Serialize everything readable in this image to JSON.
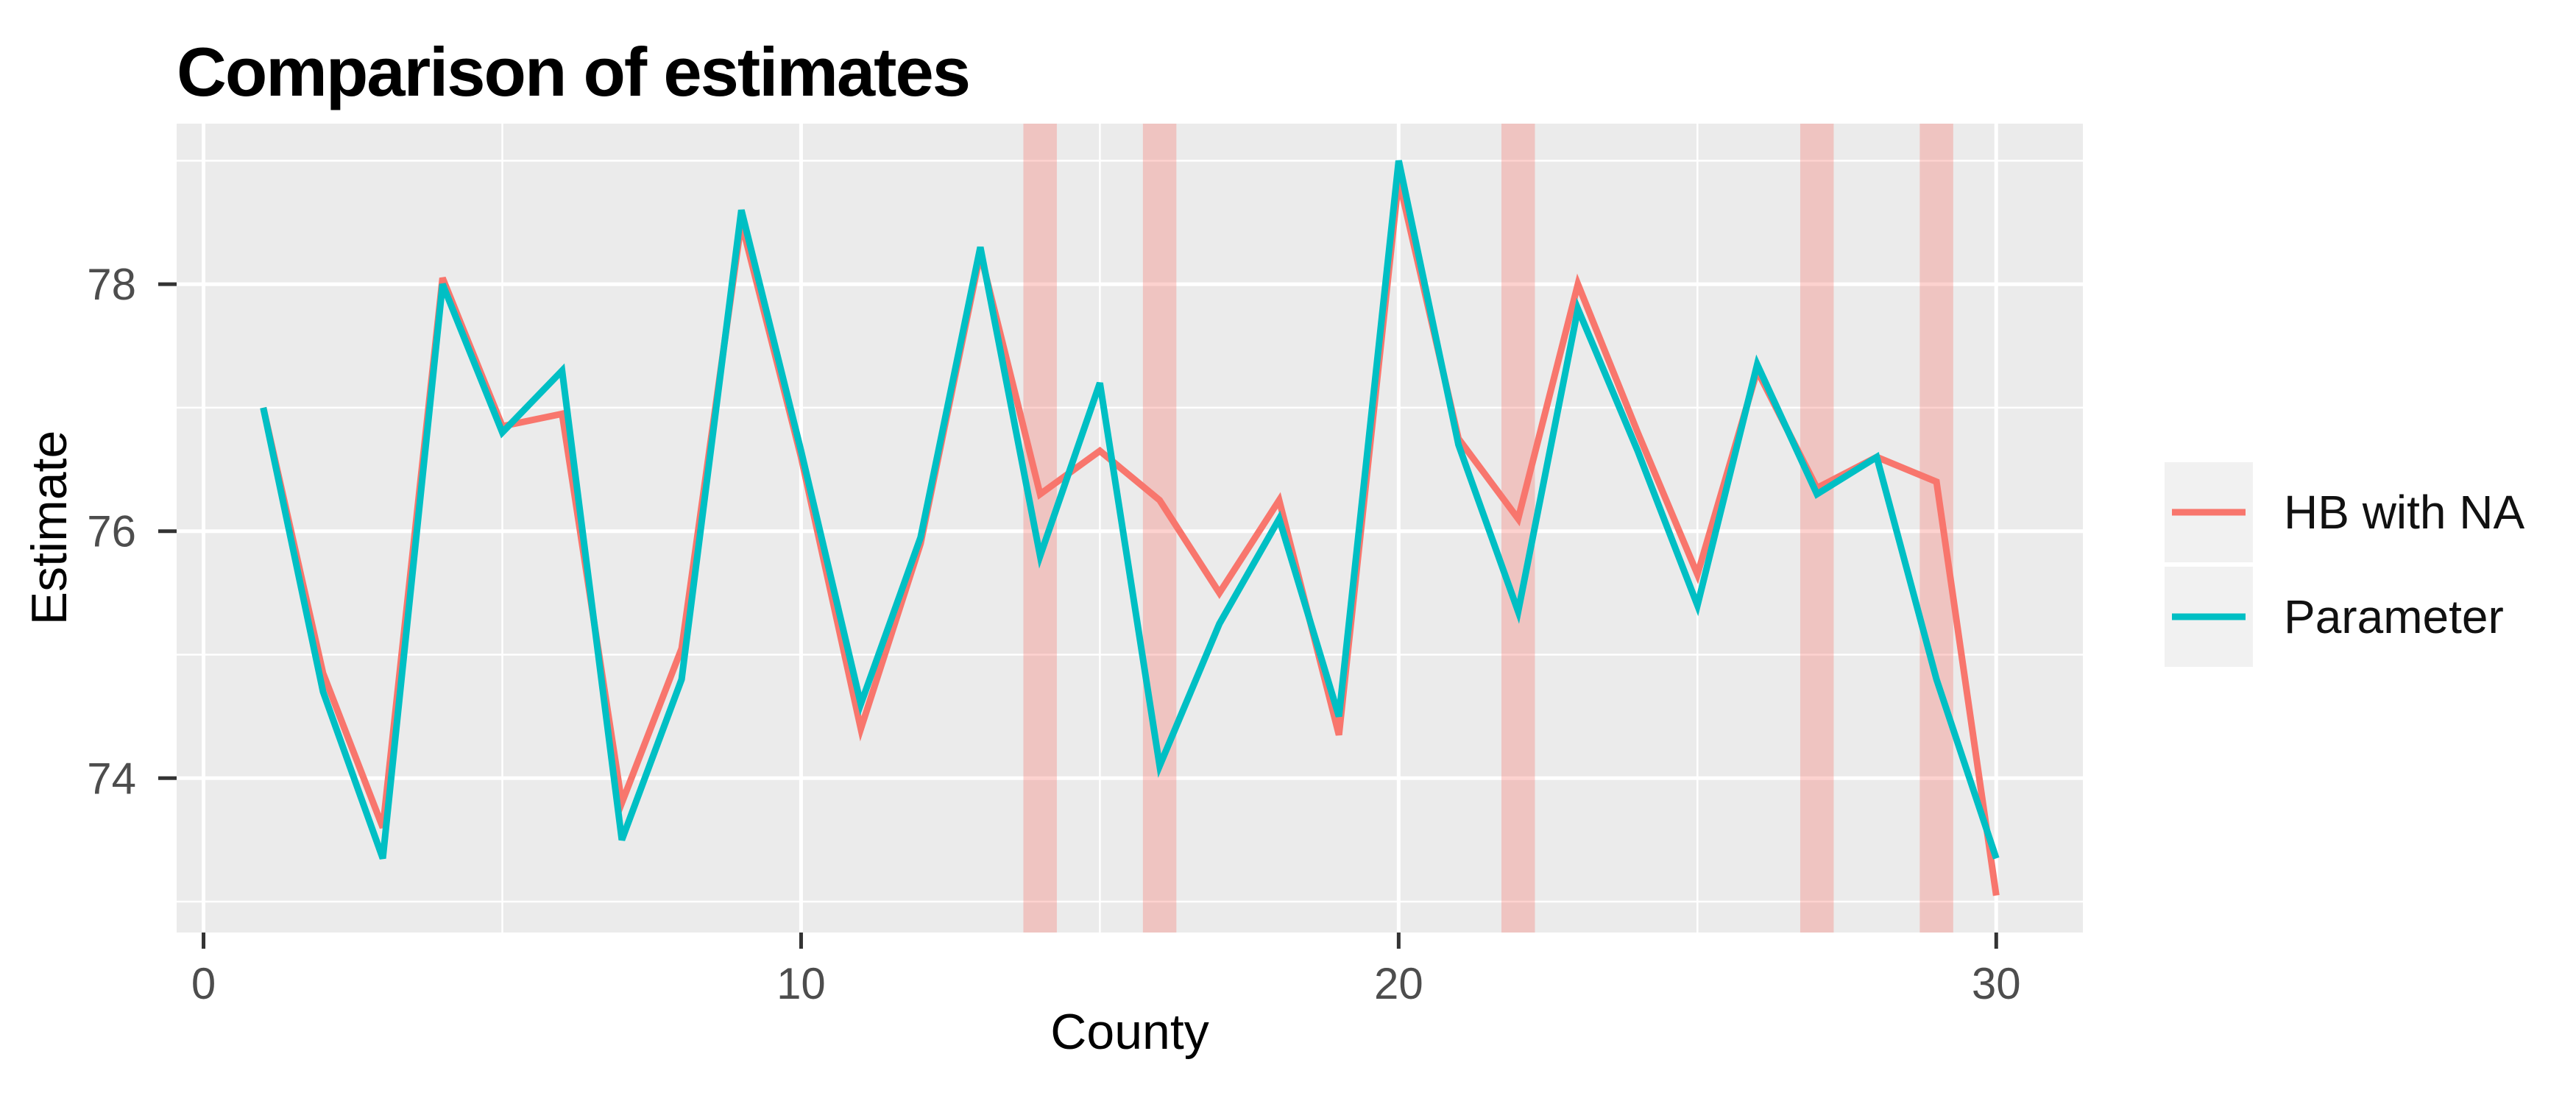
{
  "title": "Comparison of estimates",
  "chart_data": {
    "type": "line",
    "title": "Comparison of estimates",
    "xlabel": "County",
    "ylabel": "Estimate",
    "x": [
      1,
      2,
      3,
      4,
      5,
      6,
      7,
      8,
      9,
      10,
      11,
      12,
      13,
      14,
      15,
      16,
      17,
      18,
      19,
      20,
      21,
      22,
      23,
      24,
      25,
      26,
      27,
      28,
      29,
      30
    ],
    "series": [
      {
        "name": "HB with NA",
        "color": "#F8766D",
        "values": [
          77.0,
          74.85,
          73.6,
          78.05,
          76.85,
          76.95,
          73.8,
          75.05,
          78.5,
          76.6,
          74.4,
          75.9,
          78.25,
          76.3,
          76.65,
          76.25,
          75.5,
          76.25,
          74.35,
          78.85,
          76.75,
          76.1,
          78.0,
          76.8,
          75.65,
          77.3,
          76.35,
          76.6,
          76.4,
          73.05
        ]
      },
      {
        "name": "Parameter",
        "color": "#00BFC4",
        "values": [
          77.0,
          74.7,
          73.35,
          78.0,
          76.8,
          77.3,
          73.5,
          74.8,
          78.6,
          76.65,
          74.6,
          75.95,
          78.3,
          75.8,
          77.2,
          74.1,
          75.25,
          76.1,
          74.5,
          79.0,
          76.7,
          75.35,
          77.8,
          76.65,
          75.4,
          77.35,
          76.3,
          76.6,
          74.8,
          73.35
        ]
      }
    ],
    "na_band_counties": [
      14,
      16,
      22,
      27,
      29
    ],
    "na_band_halfwidth": 0.28,
    "na_band_color": "rgba(248,118,109,0.33)",
    "x_ticks": [
      0,
      10,
      20,
      30
    ],
    "y_ticks": [
      74,
      76,
      78
    ],
    "x_minor_ticks": [
      5,
      15,
      25
    ],
    "y_minor_ticks": [
      73,
      75,
      77,
      79
    ],
    "xlim": [
      -0.45,
      31.45
    ],
    "ylim": [
      72.75,
      79.3
    ],
    "grid": true,
    "legend_position": "right",
    "panel_background": "#EBEBEB",
    "gridline_color": "#FFFFFF",
    "legend_key_background": "#F1F1F1",
    "tick_mark_color": "#333333",
    "tick_label_color": "#4d4d4d",
    "line_width": 9
  }
}
